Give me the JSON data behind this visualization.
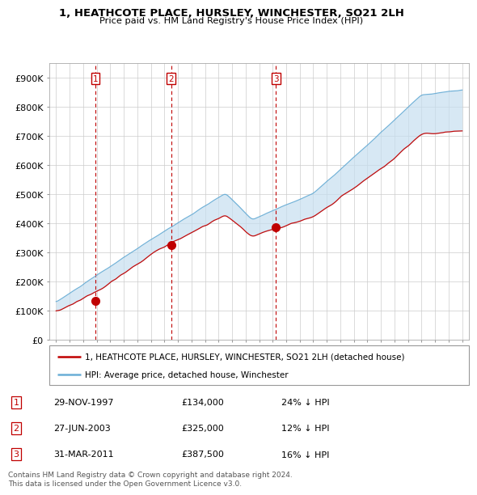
{
  "title": "1, HEATHCOTE PLACE, HURSLEY, WINCHESTER, SO21 2LH",
  "subtitle": "Price paid vs. HM Land Registry's House Price Index (HPI)",
  "ylim": [
    0,
    950000
  ],
  "yticks": [
    0,
    100000,
    200000,
    300000,
    400000,
    500000,
    600000,
    700000,
    800000,
    900000
  ],
  "ytick_labels": [
    "£0",
    "£100K",
    "£200K",
    "£300K",
    "£400K",
    "£500K",
    "£600K",
    "£700K",
    "£800K",
    "£900K"
  ],
  "hpi_color": "#6baed6",
  "price_color": "#c00000",
  "fill_color": "#c6dff0",
  "sale1_x": 1997.91,
  "sale1_y": 134000,
  "sale1_label": "1",
  "sale2_x": 2003.49,
  "sale2_y": 325000,
  "sale2_label": "2",
  "sale3_x": 2011.25,
  "sale3_y": 387500,
  "sale3_label": "3",
  "vline_color": "#c00000",
  "grid_color": "#cccccc",
  "legend_line1": "1, HEATHCOTE PLACE, HURSLEY, WINCHESTER, SO21 2LH (detached house)",
  "legend_line2": "HPI: Average price, detached house, Winchester",
  "table_rows": [
    {
      "num": "1",
      "date": "29-NOV-1997",
      "price": "£134,000",
      "hpi": "24% ↓ HPI"
    },
    {
      "num": "2",
      "date": "27-JUN-2003",
      "price": "£325,000",
      "hpi": "12% ↓ HPI"
    },
    {
      "num": "3",
      "date": "31-MAR-2011",
      "price": "£387,500",
      "hpi": "16% ↓ HPI"
    }
  ],
  "footnote": "Contains HM Land Registry data © Crown copyright and database right 2024.\nThis data is licensed under the Open Government Licence v3.0.",
  "xlim_start": 1994.5,
  "xlim_end": 2025.5
}
